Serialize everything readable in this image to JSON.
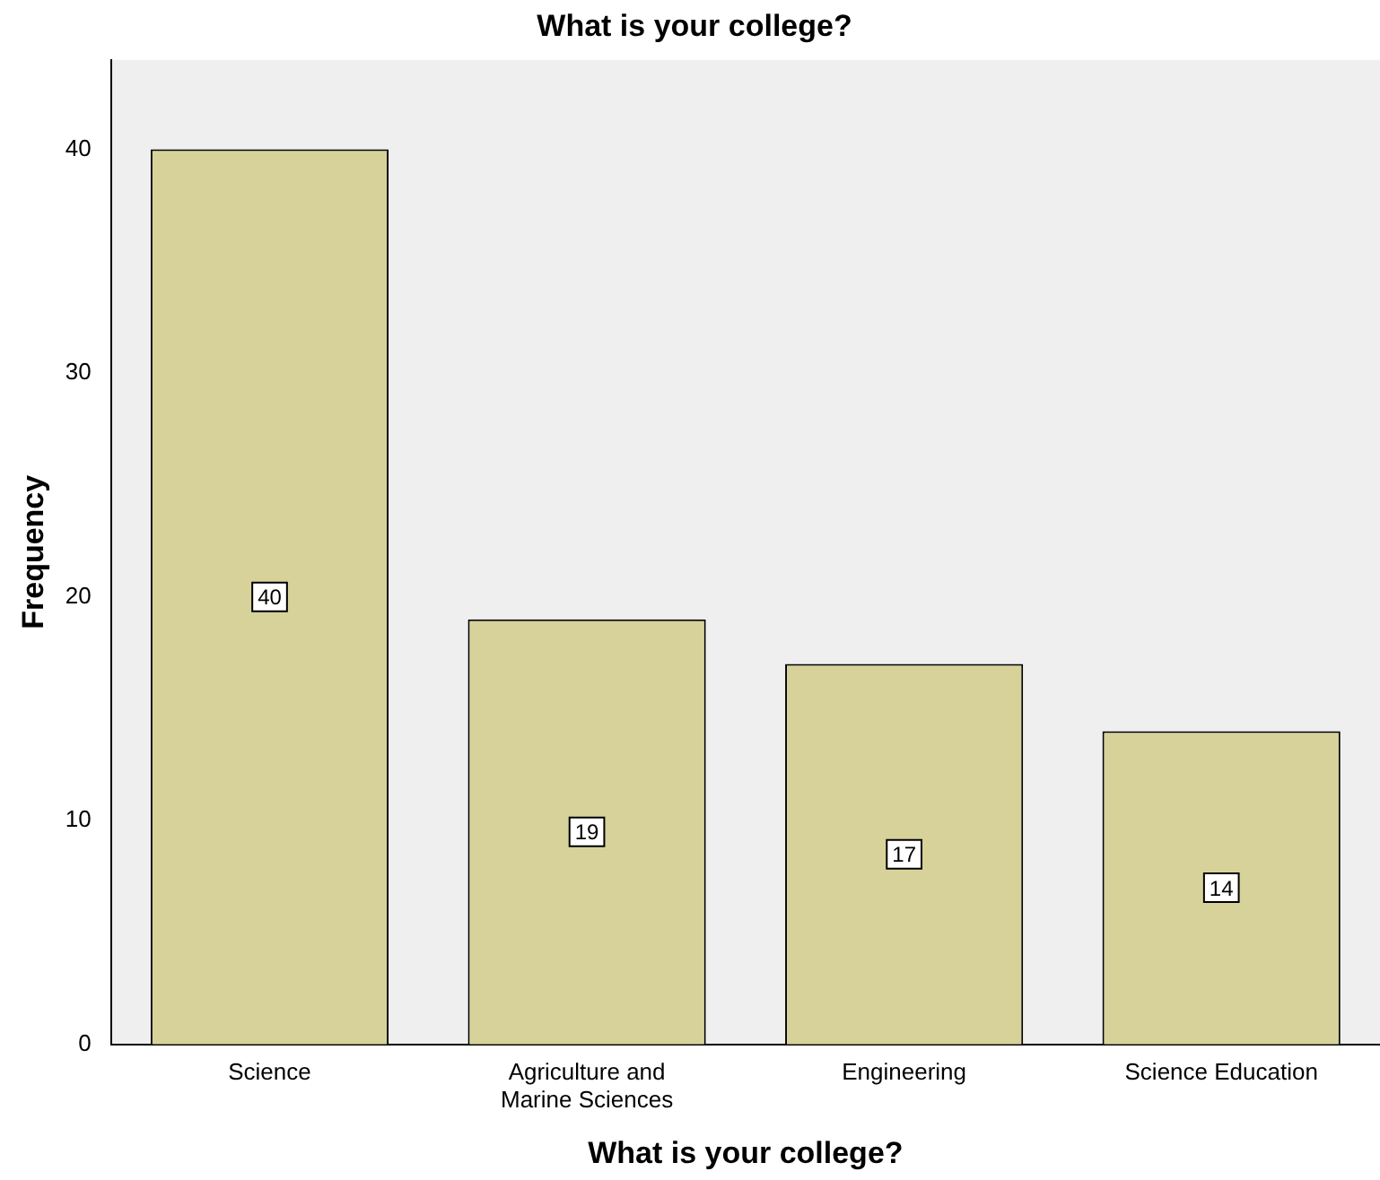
{
  "chart_data": {
    "type": "bar",
    "title": "What is your college?",
    "xlabel": "What is your college?",
    "ylabel": "Frequency",
    "categories": [
      "Science",
      "Agriculture and Marine Sciences",
      "Engineering",
      "Science Education"
    ],
    "values": [
      40,
      19,
      17,
      14
    ],
    "color": "#d6d29a",
    "ylim": [
      0,
      44
    ],
    "yticks": [
      0,
      10,
      20,
      30,
      40
    ],
    "grid": false,
    "legend": false,
    "data_labels": true
  }
}
